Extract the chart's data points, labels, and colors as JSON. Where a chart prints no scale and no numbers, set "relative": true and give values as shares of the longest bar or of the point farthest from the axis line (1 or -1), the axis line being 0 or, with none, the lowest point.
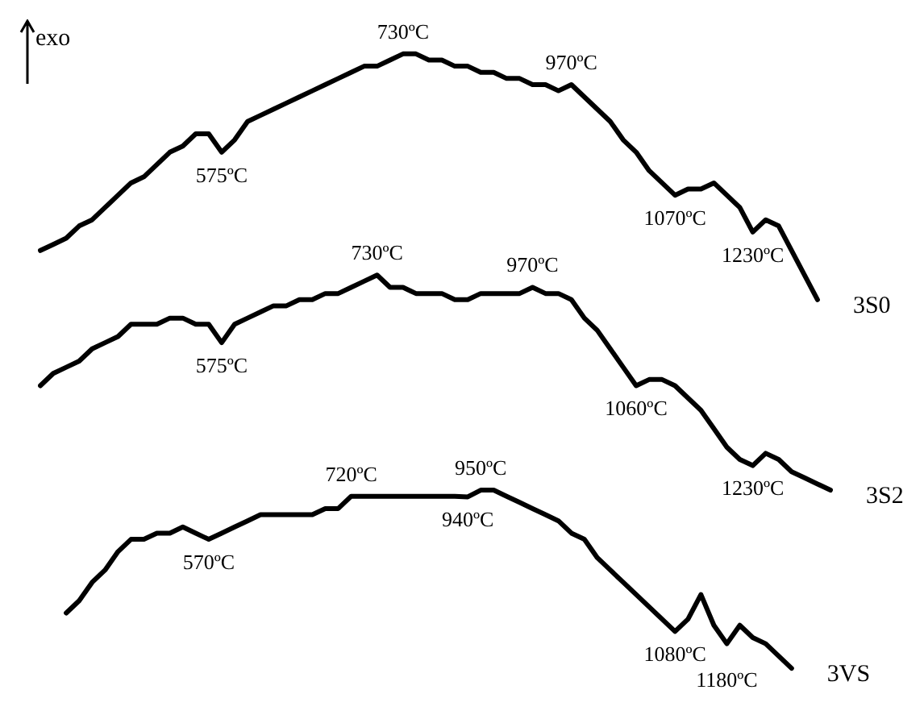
{
  "chart_data": {
    "type": "line",
    "relative": true,
    "legend": false,
    "marker": "none",
    "line_style": "solid",
    "categories": [
      null,
      null,
      null,
      null,
      null,
      null,
      null,
      null,
      null,
      null,
      null,
      null,
      null,
      null,
      null,
      null,
      null,
      null,
      null,
      null,
      null,
      null,
      null,
      null,
      null,
      null,
      null,
      null,
      null,
      null,
      null,
      null,
      null,
      null,
      null,
      null,
      null,
      null,
      null,
      null,
      null,
      null,
      null,
      null,
      null,
      null,
      null,
      null,
      null,
      null,
      null,
      null,
      null,
      null,
      null,
      null,
      null,
      null,
      null,
      null,
      null,
      null
    ],
    "series": [
      {
        "name": "3S0",
        "color": "#000000",
        "values": [
          0.68,
          0.69,
          0.7,
          0.72,
          0.73,
          0.75,
          0.77,
          0.79,
          0.8,
          0.82,
          0.84,
          0.85,
          0.87,
          0.87,
          0.84,
          0.86,
          0.89,
          0.9,
          0.91,
          0.92,
          0.93,
          0.94,
          0.95,
          0.96,
          0.97,
          0.98,
          0.98,
          0.99,
          1.0,
          1.0,
          0.99,
          0.99,
          0.98,
          0.98,
          0.97,
          0.97,
          0.96,
          0.96,
          0.95,
          0.95,
          0.94,
          0.95,
          0.93,
          0.91,
          0.89,
          0.86,
          0.84,
          0.81,
          0.79,
          0.77,
          0.78,
          0.78,
          0.79,
          0.77,
          0.75,
          0.71,
          0.73,
          0.72,
          0.68,
          0.64,
          0.6,
          null
        ]
      },
      {
        "name": "3S2",
        "color": "#000000",
        "values": [
          0.46,
          0.48,
          0.49,
          0.5,
          0.52,
          0.53,
          0.54,
          0.56,
          0.56,
          0.56,
          0.57,
          0.57,
          0.56,
          0.56,
          0.53,
          0.56,
          0.57,
          0.58,
          0.59,
          0.59,
          0.6,
          0.6,
          0.61,
          0.61,
          0.62,
          0.63,
          0.64,
          0.62,
          0.62,
          0.61,
          0.61,
          0.61,
          0.6,
          0.6,
          0.61,
          0.61,
          0.61,
          0.61,
          0.62,
          0.61,
          0.61,
          0.6,
          0.57,
          0.55,
          0.52,
          0.49,
          0.46,
          0.47,
          0.47,
          0.46,
          0.44,
          0.42,
          0.39,
          0.36,
          0.34,
          0.33,
          0.35,
          0.34,
          0.32,
          0.31,
          0.3,
          0.29
        ]
      },
      {
        "name": "3VS",
        "color": "#000000",
        "values": [
          null,
          null,
          0.09,
          0.11,
          0.14,
          0.16,
          0.19,
          0.21,
          0.21,
          0.22,
          0.22,
          0.23,
          0.22,
          0.21,
          0.22,
          0.23,
          0.24,
          0.25,
          0.25,
          0.25,
          0.25,
          0.25,
          0.26,
          0.26,
          0.28,
          0.28,
          0.28,
          0.28,
          0.28,
          0.28,
          0.28,
          0.28,
          0.28,
          0.279,
          0.29,
          0.29,
          0.28,
          0.27,
          0.26,
          0.25,
          0.24,
          0.22,
          0.21,
          0.18,
          0.16,
          0.14,
          0.12,
          0.1,
          0.08,
          0.06,
          0.08,
          0.12,
          0.07,
          0.04,
          0.07,
          0.05,
          0.04,
          0.02,
          0.0,
          null,
          null,
          null
        ]
      }
    ],
    "annotations": [
      "exo",
      {
        "text": "575ºC",
        "y": 0.84
      },
      {
        "text": "730ºC",
        "y": 1.0
      },
      {
        "text": "970ºC",
        "y": 0.95
      },
      {
        "text": "1070ºC",
        "y": 0.77
      },
      {
        "text": "1230ºC",
        "y": 0.71
      },
      {
        "text": "575ºC",
        "y": 0.53
      },
      {
        "text": "730ºC",
        "y": 0.64
      },
      {
        "text": "970ºC",
        "y": 0.62
      },
      {
        "text": "1060ºC",
        "y": 0.46
      },
      {
        "text": "1230ºC",
        "y": 0.33
      },
      {
        "text": "570ºC",
        "y": 0.21
      },
      {
        "text": "720ºC",
        "y": 0.28
      },
      {
        "text": "940ºC",
        "y": 0.279
      },
      {
        "text": "950ºC",
        "y": 0.29
      },
      {
        "text": "1080ºC",
        "y": 0.06
      },
      {
        "text": "1180ºC",
        "y": 0.04
      }
    ]
  }
}
